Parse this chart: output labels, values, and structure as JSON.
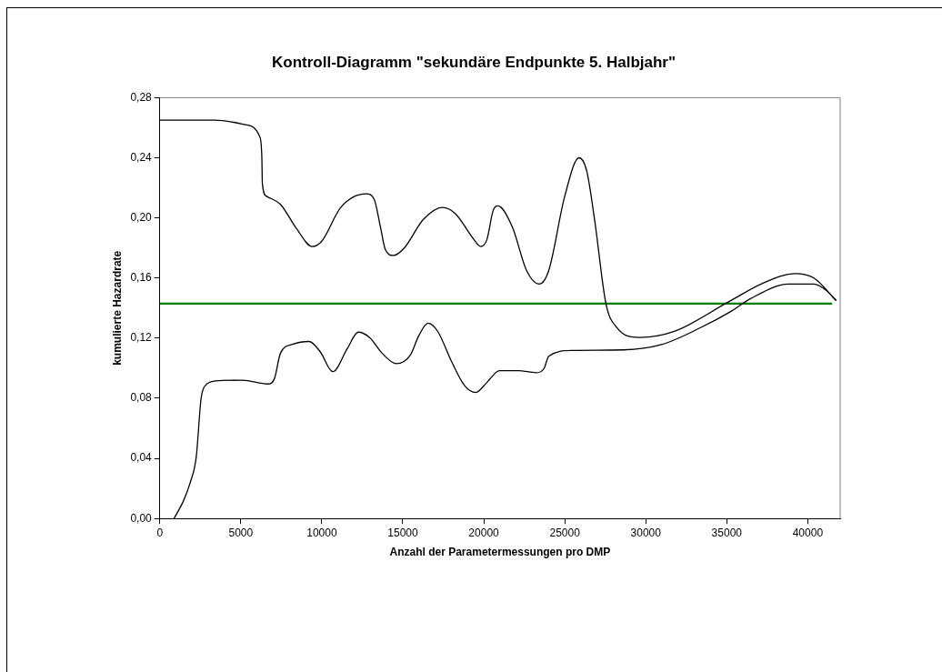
{
  "chart_data": {
    "type": "line",
    "title": "Kontroll-Diagramm \"sekundäre Endpunkte 5. Halbjahr\"",
    "xlabel": "Anzahl der Parametermessungen pro DMP",
    "ylabel": "kumulierte Hazardrate",
    "xlim": [
      0,
      42000
    ],
    "xticks": [
      0,
      5000,
      10000,
      15000,
      20000,
      25000,
      30000,
      35000,
      40000
    ],
    "ylim": [
      0,
      0.28
    ],
    "yticks": [
      {
        "value": 0,
        "label": "0,00"
      },
      {
        "value": 0.04,
        "label": "0,04"
      },
      {
        "value": 0.08,
        "label": "0,08"
      },
      {
        "value": 0.12,
        "label": "0,12"
      },
      {
        "value": 0.16,
        "label": "0,16"
      },
      {
        "value": 0.2,
        "label": "0,20"
      },
      {
        "value": 0.24,
        "label": "0,24"
      },
      {
        "value": 0.28,
        "label": "0,28"
      }
    ],
    "grid": false,
    "legend": false,
    "marker": "none",
    "line_style": "solid",
    "series": [
      {
        "color": "#000000",
        "x": [
          0,
          3410,
          5290,
          6170,
          6300,
          6330,
          6570,
          7450,
          8430,
          9410,
          10000,
          11170,
          12740,
          13230,
          13620,
          13920,
          14410,
          15090,
          16270,
          17450,
          18230,
          19400,
          19800,
          20190,
          20580,
          20870,
          21760,
          22640,
          23420,
          24010,
          25000,
          25880,
          26360,
          26850,
          27540,
          28220,
          29590,
          31760,
          35090,
          37240,
          39200,
          40380,
          41750
        ],
        "values": [
          0.265,
          0.265,
          0.262,
          0.254,
          0.24,
          0.223,
          0.2145,
          0.209,
          0.193,
          0.181,
          0.1845,
          0.207,
          0.216,
          0.2125,
          0.194,
          0.179,
          0.175,
          0.18,
          0.199,
          0.207,
          0.203,
          0.1855,
          0.181,
          0.1855,
          0.205,
          0.208,
          0.194,
          0.165,
          0.156,
          0.165,
          0.2145,
          0.24,
          0.231,
          0.198,
          0.143,
          0.127,
          0.1205,
          0.1245,
          0.144,
          0.1566,
          0.163,
          0.16,
          0.145
        ]
      },
      {
        "color": "#000000",
        "x": [
          880,
          1470,
          1860,
          2250,
          2550,
          2840,
          3430,
          5100,
          6660,
          7060,
          7450,
          8230,
          9210,
          9900,
          10680,
          11570,
          12250,
          12940,
          13720,
          14600,
          15480,
          15980,
          16560,
          17150,
          18030,
          18820,
          19500,
          20190,
          20970,
          22150,
          23230,
          23720,
          24010,
          25480,
          28620,
          30970,
          33330,
          35290,
          36470,
          38820,
          40380,
          41170,
          41750
        ],
        "values": [
          0,
          0.012,
          0.0233,
          0.041,
          0.08,
          0.0888,
          0.0915,
          0.092,
          0.0895,
          0.0926,
          0.11,
          0.116,
          0.1178,
          0.111,
          0.0977,
          0.113,
          0.124,
          0.1205,
          0.11,
          0.103,
          0.109,
          0.1215,
          0.13,
          0.1246,
          0.104,
          0.0884,
          0.0839,
          0.0905,
          0.0984,
          0.0984,
          0.097,
          0.0998,
          0.108,
          0.1118,
          0.1122,
          0.1157,
          0.1267,
          0.138,
          0.1463,
          0.156,
          0.156,
          0.1515,
          0.145
        ]
      },
      {
        "color": "#008000",
        "x": [
          0,
          41500
        ],
        "values": [
          0.143,
          0.143
        ]
      }
    ]
  }
}
